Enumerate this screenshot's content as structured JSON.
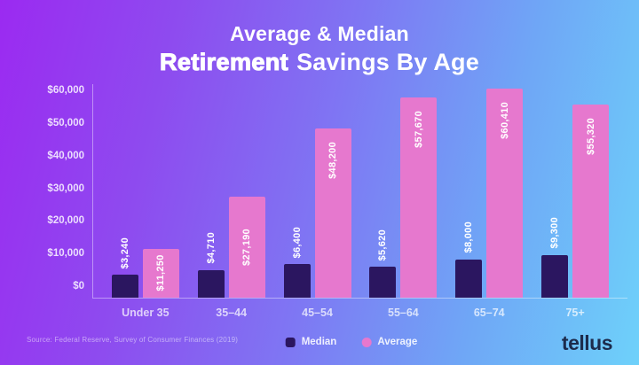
{
  "title": {
    "line1": "Average & Median",
    "line2_strong": "Retirement",
    "line2_rest": "Savings By Age"
  },
  "source": "Source: Federal Reserve, Survey of Consumer Finances (2019)",
  "logo": "tellus",
  "theme": {
    "bg_stops": [
      "#9B2AF1",
      "#8E4BEF",
      "#7F75F3",
      "#6FA6F6",
      "#6ED1FA"
    ],
    "axis_line": "rgba(255,255,255,0.42)",
    "median_color": "#2B1660",
    "average_color": "#E678CE",
    "label_color": "#FFFFFF",
    "logo_color": "#1C2B4C"
  },
  "chart_data": {
    "type": "bar",
    "title": "Average & Median Retirement Savings By Age",
    "categories": [
      "Under 35",
      "35–44",
      "45–54",
      "55–64",
      "65–74",
      "75+"
    ],
    "series": [
      {
        "name": "Median",
        "color": "#2B1660",
        "values": [
          3240,
          4710,
          6400,
          5620,
          8000,
          9300
        ]
      },
      {
        "name": "Average",
        "color": "#E678CE",
        "values": [
          11250,
          27190,
          48200,
          57670,
          60410,
          55320
        ]
      }
    ],
    "value_labels": {
      "Median": [
        "$3,240",
        "$4,710",
        "$6,400",
        "$5,620",
        "$8,000",
        "$9,300"
      ],
      "Average": [
        "$11,250",
        "$27,190",
        "$48,200",
        "$57,670",
        "$60,410",
        "$55,320"
      ]
    },
    "y_ticks": [
      "$0",
      "$10,000",
      "$20,000",
      "$30,000",
      "$40,000",
      "$50,000",
      "$60,000"
    ],
    "ylim": [
      0,
      60000
    ],
    "grid": false,
    "legend_position": "bottom",
    "xlabel": "",
    "ylabel": ""
  }
}
